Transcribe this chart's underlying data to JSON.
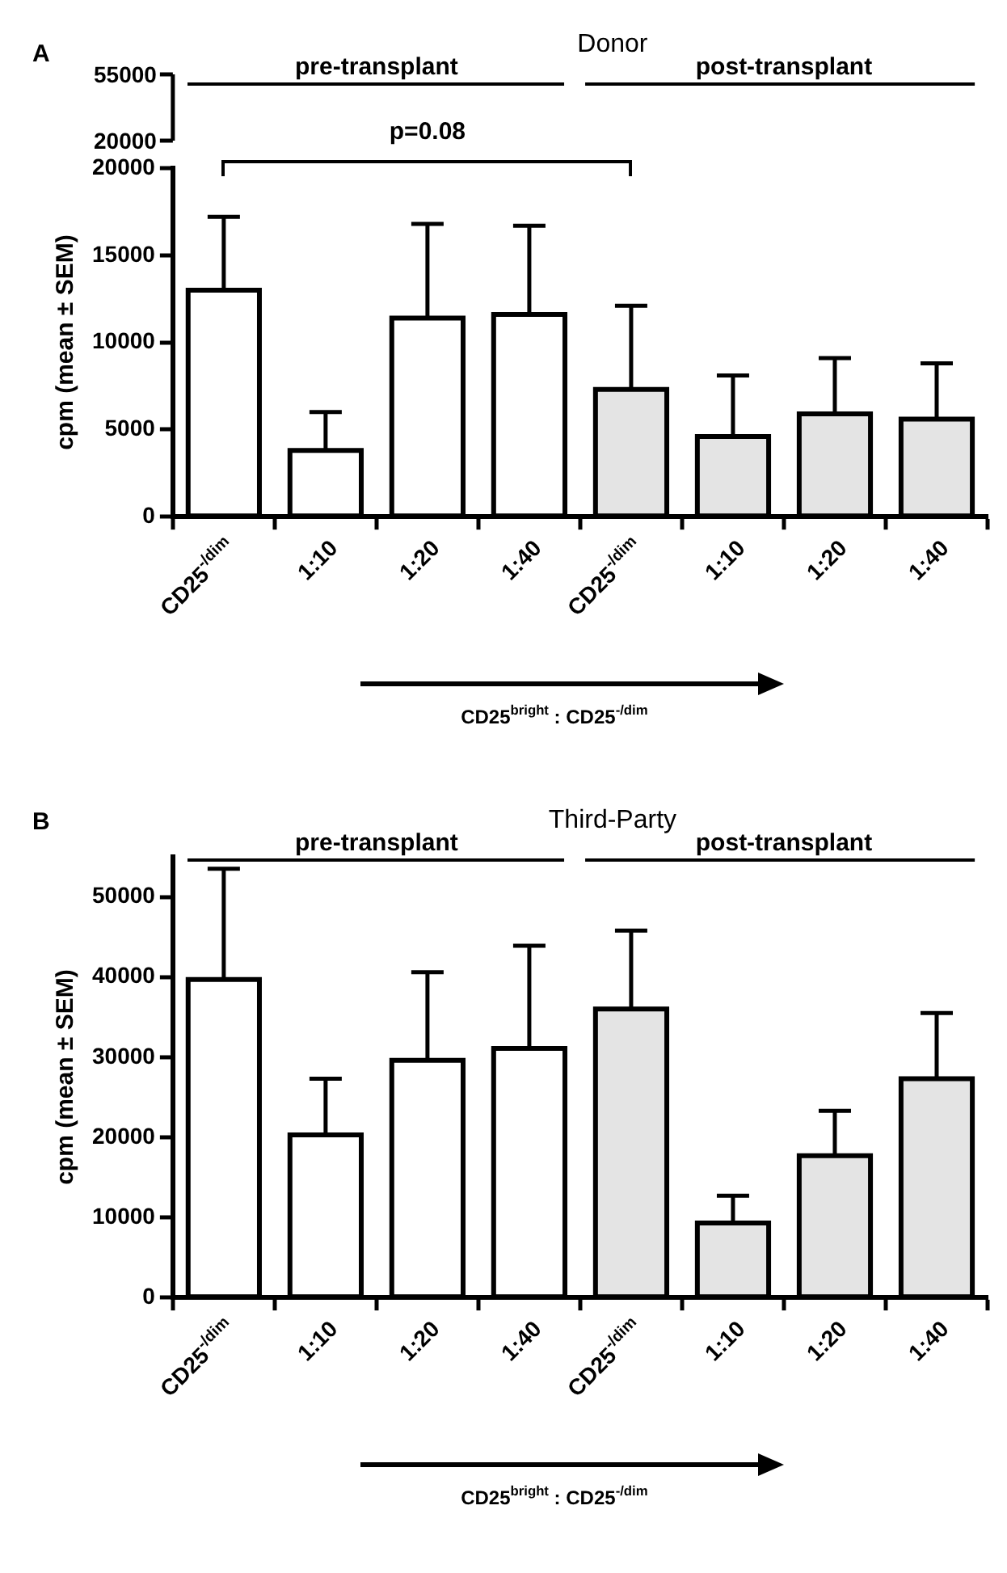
{
  "chart_data": [
    {
      "type": "bar",
      "title": "Donor",
      "ylabel": "cpm (mean ± SEM)",
      "categories": [
        "CD25$^{-/dim}$",
        "1:10",
        "1:20",
        "1:40",
        "CD25$^{-/dim}$",
        "1:10",
        "1:20",
        "1:40"
      ],
      "values": [
        13000,
        3800,
        11400,
        11600,
        7300,
        4600,
        5900,
        5600
      ],
      "errors": [
        4200,
        2200,
        5400,
        5100,
        4800,
        3500,
        3200,
        3200
      ],
      "colors": [
        "#ffffff",
        "#ffffff",
        "#ffffff",
        "#ffffff",
        "#e4e4e4",
        "#e4e4e4",
        "#e4e4e4",
        "#e4e4e4"
      ],
      "ylim": [
        0,
        20000
      ],
      "yticks": [
        0,
        5000,
        10000,
        15000,
        20000
      ],
      "grid": false,
      "legend": false,
      "annotations": [
        "A",
        "pre-transplant",
        "post-transplant",
        "CD25$^{bright}$ : CD25$^{-/dim}$",
        "p=0.08",
        "55000",
        "20000"
      ]
    },
    {
      "type": "bar",
      "title": "Third-Party",
      "ylabel": "cpm (mean ± SEM)",
      "categories": [
        "CD25$^{-/dim}$",
        "1:10",
        "1:20",
        "1:40",
        "CD25$^{-/dim}$",
        "1:10",
        "1:20",
        "1:40"
      ],
      "values": [
        39700,
        20300,
        29600,
        31100,
        36000,
        9300,
        17700,
        27300
      ],
      "errors": [
        13800,
        7000,
        11000,
        12800,
        9800,
        3400,
        5600,
        8200
      ],
      "colors": [
        "#ffffff",
        "#ffffff",
        "#ffffff",
        "#ffffff",
        "#e4e4e4",
        "#e4e4e4",
        "#e4e4e4",
        "#e4e4e4"
      ],
      "ylim": [
        0,
        55000
      ],
      "yticks": [
        0,
        10000,
        20000,
        30000,
        40000,
        50000
      ],
      "grid": false,
      "legend": false,
      "annotations": [
        "B",
        "pre-transplant",
        "post-transplant",
        "CD25$^{bright}$ : CD25$^{-/dim}$"
      ]
    }
  ]
}
